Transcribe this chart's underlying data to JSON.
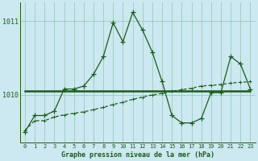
{
  "title": "Graphe pression niveau de la mer (hPa)",
  "background_color": "#cce8f0",
  "plot_bg_color": "#cce8f0",
  "grid_color": "#99ccbb",
  "line_color": "#1a5c1a",
  "xlim": [
    -0.5,
    23.5
  ],
  "ylim": [
    1009.35,
    1011.25
  ],
  "yticks": [
    1010,
    1011
  ],
  "xticks": [
    0,
    1,
    2,
    3,
    4,
    5,
    6,
    7,
    8,
    9,
    10,
    11,
    12,
    13,
    14,
    15,
    16,
    17,
    18,
    19,
    20,
    21,
    22,
    23
  ],
  "hours": [
    0,
    1,
    2,
    3,
    4,
    5,
    6,
    7,
    8,
    9,
    10,
    11,
    12,
    13,
    14,
    15,
    16,
    17,
    18,
    19,
    20,
    21,
    22,
    23
  ],
  "line1_spiky": [
    1009.5,
    1009.72,
    1009.72,
    1009.78,
    1010.08,
    1010.08,
    1010.12,
    1010.28,
    1010.52,
    1010.98,
    1010.72,
    1011.12,
    1010.88,
    1010.58,
    1010.18,
    1009.72,
    1009.62,
    1009.62,
    1009.68,
    1010.03,
    1010.03,
    1010.52,
    1010.42,
    1010.08
  ],
  "line2_flat": [
    1010.05,
    1010.05,
    1010.05,
    1010.05,
    1010.05,
    1010.05,
    1010.05,
    1010.05,
    1010.05,
    1010.05,
    1010.05,
    1010.05,
    1010.05,
    1010.05,
    1010.05,
    1010.05,
    1010.05,
    1010.05,
    1010.05,
    1010.05,
    1010.05,
    1010.05,
    1010.05,
    1010.05
  ],
  "line3_rising": [
    1009.52,
    1009.65,
    1009.65,
    1009.7,
    1009.73,
    1009.75,
    1009.77,
    1009.8,
    1009.83,
    1009.87,
    1009.9,
    1009.94,
    1009.97,
    1010.0,
    1010.02,
    1010.05,
    1010.07,
    1010.09,
    1010.12,
    1010.13,
    1010.14,
    1010.16,
    1010.17,
    1010.18
  ]
}
